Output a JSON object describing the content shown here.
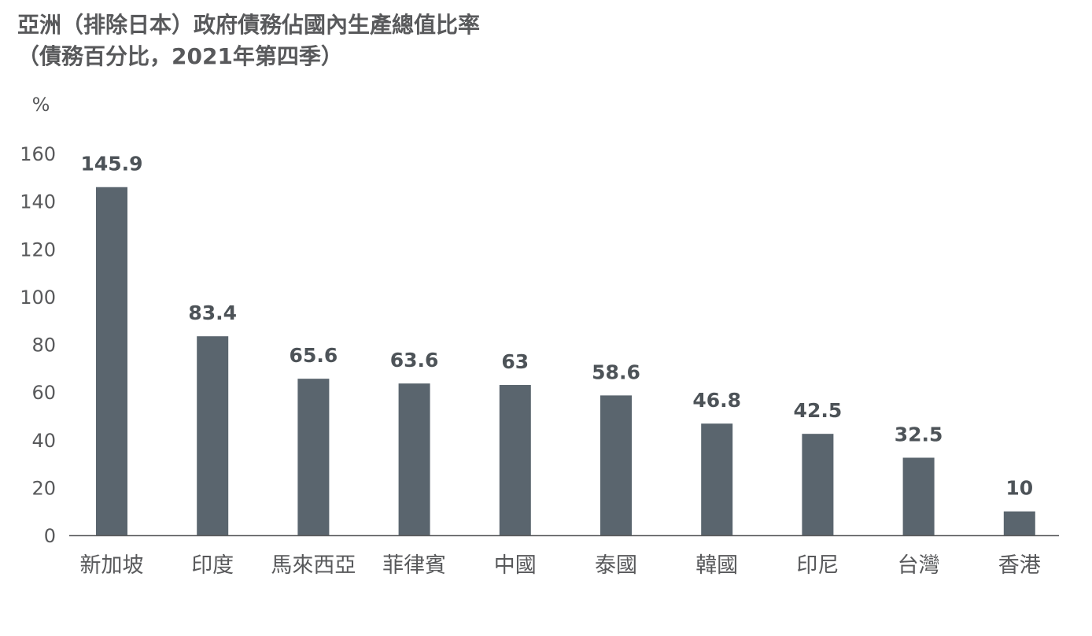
{
  "title": {
    "line1": "亞洲（排除日本）政府債務佔國內生產總值比率",
    "line2": "（債務百分比，2021年第四季）"
  },
  "chart_data": {
    "type": "bar",
    "title": "亞洲（排除日本）政府債務佔國內生產總值比率（債務百分比，2021年第四季）",
    "xlabel": "",
    "ylabel": "%",
    "ylim": [
      0,
      160
    ],
    "yticks": [
      0,
      20,
      40,
      60,
      80,
      100,
      120,
      140,
      160
    ],
    "grid": false,
    "categories": [
      "新加坡",
      "印度",
      "馬來西亞",
      "菲律賓",
      "中國",
      "泰國",
      "韓國",
      "印尼",
      "台灣",
      "香港"
    ],
    "values": [
      145.9,
      83.4,
      65.6,
      63.6,
      63,
      58.6,
      46.8,
      42.5,
      32.5,
      10
    ],
    "value_labels": [
      "145.9",
      "83.4",
      "65.6",
      "63.6",
      "63",
      "58.6",
      "46.8",
      "42.5",
      "32.5",
      "10"
    ],
    "bar_color": "#5a656e",
    "text_color": "#58595b",
    "label_color": "#4d5358"
  }
}
